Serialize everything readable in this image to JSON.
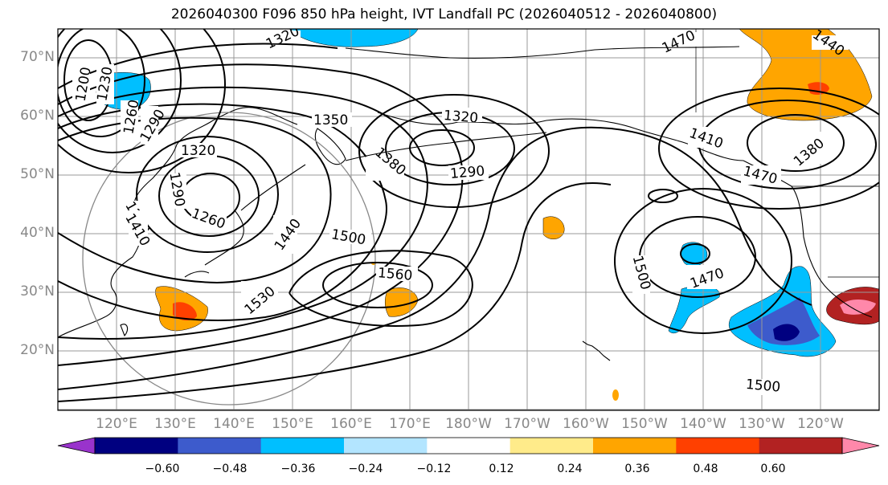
{
  "title": "2026040300 F096 850 hPa height, IVT Landfall PC (2026040512 - 2026040800)",
  "latitude_labels": [
    "70°N",
    "60°N",
    "50°N",
    "40°N",
    "30°N",
    "20°N"
  ],
  "longitude_labels": [
    "120°E",
    "130°E",
    "140°E",
    "150°E",
    "160°E",
    "170°E",
    "180°W",
    "170°W",
    "160°W",
    "150°W",
    "140°W",
    "130°W",
    "120°W"
  ],
  "colorbar": {
    "tick_labels": [
      "−0.60",
      "−0.48",
      "−0.36",
      "−0.24",
      "−0.12",
      "0.12",
      "0.24",
      "0.36",
      "0.48",
      "0.60"
    ],
    "colors": [
      "#9933cc",
      "#000080",
      "#3d5bcc",
      "#00bfff",
      "#b3e5ff",
      "#ffffff",
      "#ffeb8a",
      "#ffa500",
      "#ff4000",
      "#b22222",
      "#ff88aa"
    ]
  },
  "contour_labels": [
    "1320",
    "1470",
    "1440",
    "1200",
    "1230",
    "1260",
    "1290",
    "1320",
    "1350",
    "1380",
    "1290",
    "1260",
    "1260",
    "1410",
    "1440",
    "1500",
    "1560",
    "1530",
    "1320",
    "1290",
    "1380",
    "1410",
    "1470",
    "1500",
    "1470",
    "1500"
  ],
  "colors": {
    "contour": "#000000",
    "grid": "#999999",
    "coast": "#000000",
    "tick_text": "#888888"
  }
}
